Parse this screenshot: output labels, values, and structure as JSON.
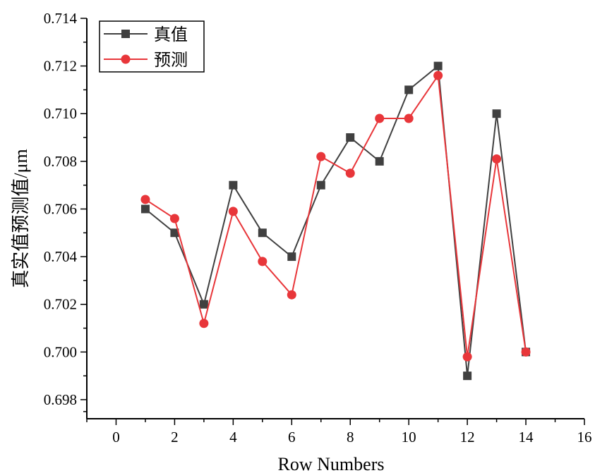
{
  "chart_data": {
    "type": "line",
    "title": "",
    "xlabel": "Row Numbers",
    "ylabel": "真实值预测值/μm",
    "xlim": [
      -1,
      16
    ],
    "ylim": [
      0.6972,
      0.714
    ],
    "x_ticks": [
      0,
      2,
      4,
      6,
      8,
      10,
      12,
      14,
      16
    ],
    "x_tick_labels": [
      "0",
      "2",
      "4",
      "6",
      "8",
      "10",
      "12",
      "14",
      "16"
    ],
    "y_ticks": [
      0.698,
      0.7,
      0.702,
      0.704,
      0.706,
      0.708,
      0.71,
      0.712,
      0.714
    ],
    "y_tick_labels": [
      "0.698",
      "0.700",
      "0.702",
      "0.704",
      "0.706",
      "0.708",
      "0.710",
      "0.712",
      "0.714"
    ],
    "grid": false,
    "legend_position": "top-left",
    "x": [
      1,
      2,
      3,
      4,
      5,
      6,
      7,
      8,
      9,
      10,
      11,
      12,
      13,
      14
    ],
    "series": [
      {
        "name": "真值",
        "color": "#404040",
        "marker": "square",
        "values": [
          0.706,
          0.705,
          0.702,
          0.707,
          0.705,
          0.704,
          0.707,
          0.709,
          0.708,
          0.711,
          0.712,
          0.699,
          0.71,
          0.7
        ]
      },
      {
        "name": "预测",
        "color": "#e8363a",
        "marker": "circle",
        "values": [
          0.7064,
          0.7056,
          0.7012,
          0.7059,
          0.7038,
          0.7024,
          0.7082,
          0.7075,
          0.7098,
          0.7098,
          0.7116,
          0.6998,
          0.7081,
          0.7
        ]
      }
    ]
  }
}
